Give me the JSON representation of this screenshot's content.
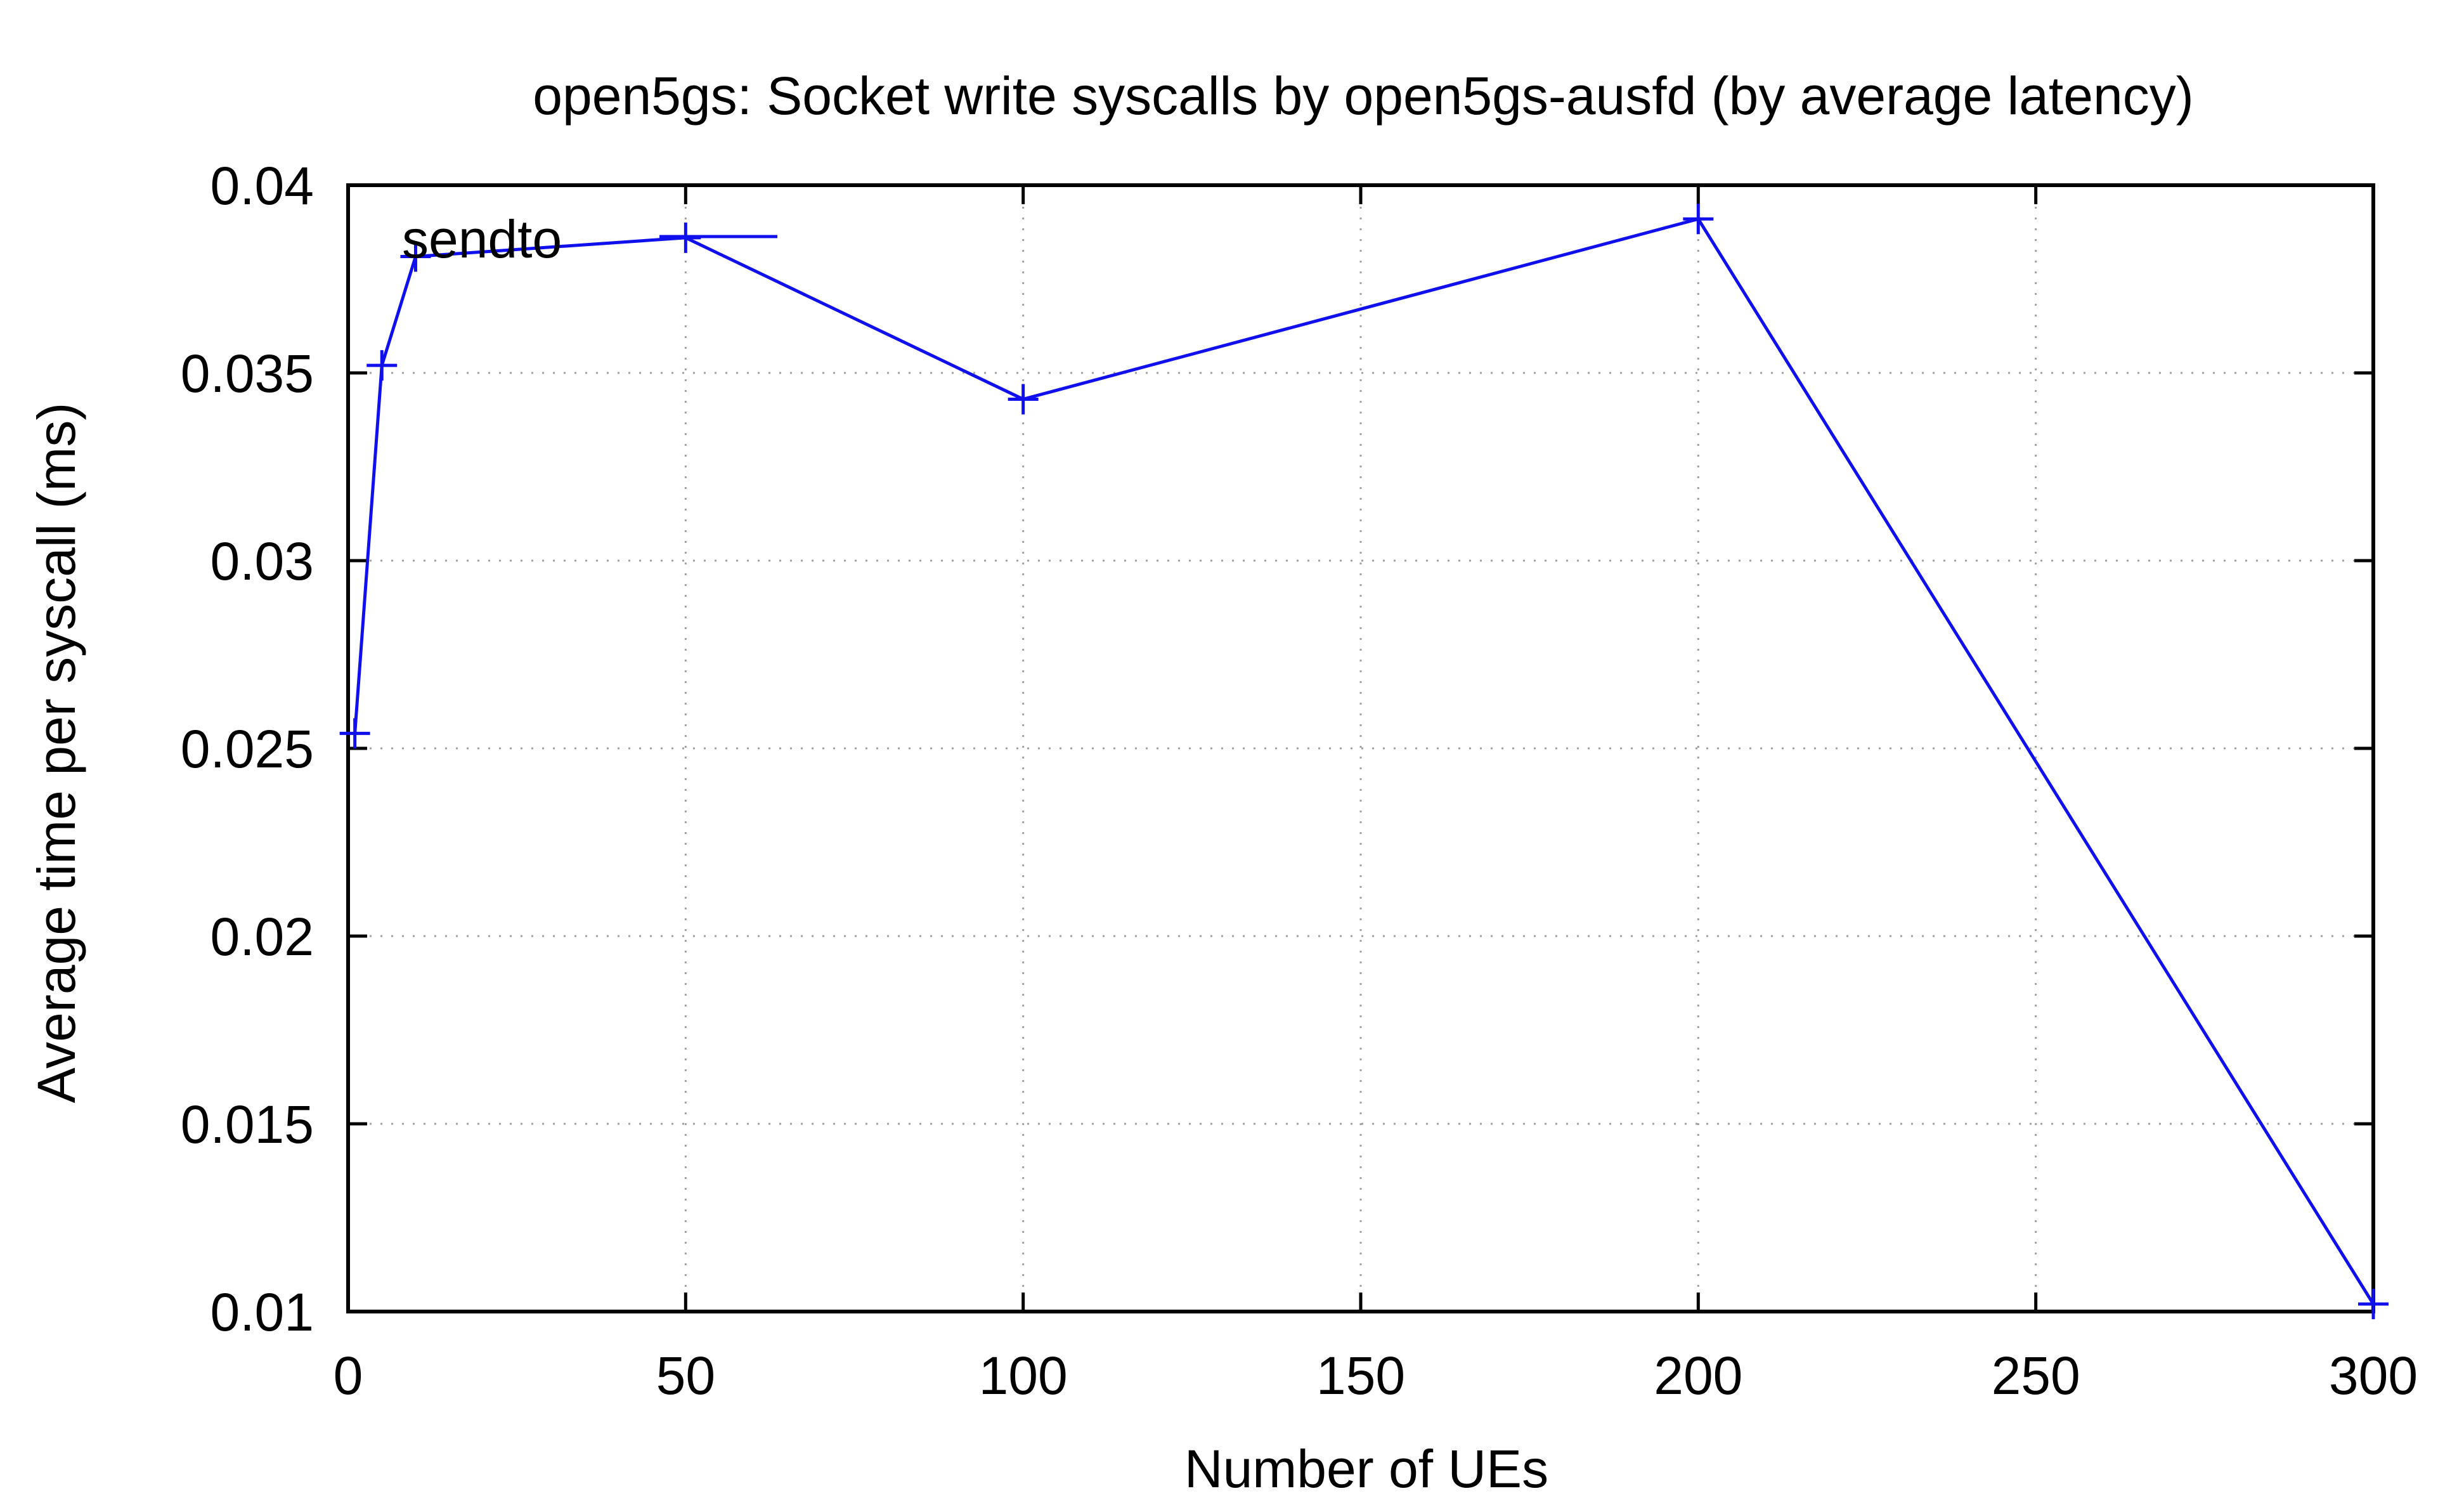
{
  "chart_data": {
    "type": "line",
    "title": "open5gs: Socket write syscalls by open5gs-ausfd (by average latency)",
    "xlabel": "Number of UEs",
    "ylabel": "Average time per syscall (ms)",
    "xlim": [
      0,
      300
    ],
    "ylim": [
      0.01,
      0.04
    ],
    "xticks": [
      0,
      50,
      100,
      150,
      200,
      250,
      300
    ],
    "xtick_labels": [
      "0",
      "50",
      "100",
      "150",
      "200",
      "250",
      "300"
    ],
    "yticks": [
      0.01,
      0.015,
      0.02,
      0.025,
      0.03,
      0.035,
      0.04
    ],
    "ytick_labels": [
      "0.01",
      "0.015",
      "0.02",
      "0.025",
      "0.03",
      "0.035",
      "0.04"
    ],
    "grid": true,
    "legend_position": "top-left",
    "series": [
      {
        "name": "sendto",
        "color": "#1010ee",
        "marker": "plus",
        "x": [
          1,
          5,
          10,
          50,
          100,
          200,
          300
        ],
        "y": [
          0.0254,
          0.0352,
          0.0381,
          0.0386,
          0.0343,
          0.0391,
          0.0102
        ]
      }
    ]
  }
}
